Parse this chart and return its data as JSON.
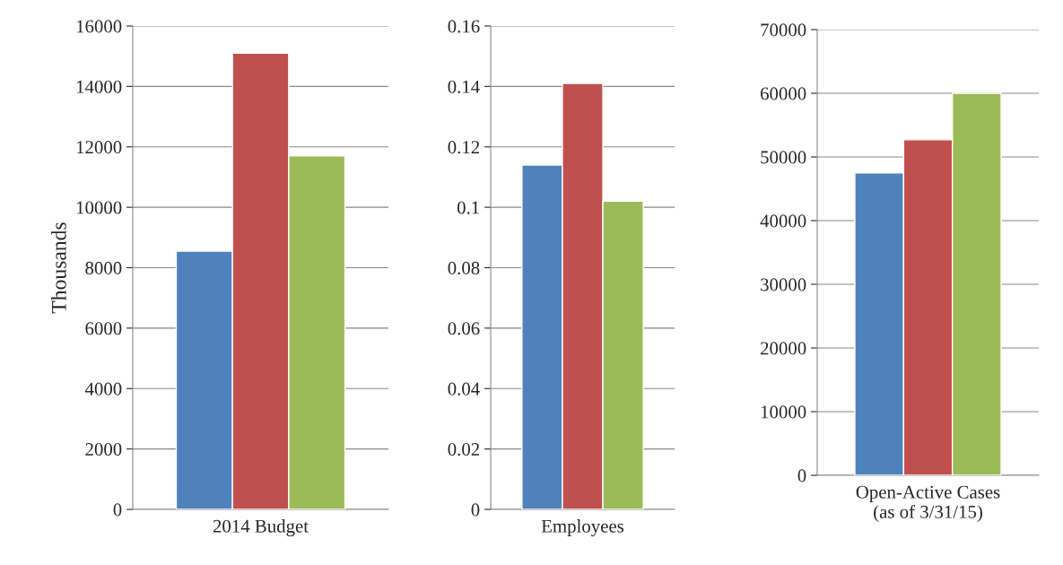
{
  "chart_data": [
    {
      "type": "bar",
      "categories": [
        "2014 Budget"
      ],
      "ylabel": "Thousands",
      "ylim": [
        0,
        16000
      ],
      "yticks": [
        0,
        2000,
        4000,
        6000,
        8000,
        10000,
        12000,
        14000,
        16000
      ],
      "grid": "y",
      "series": [
        {
          "color": "#4f81bd",
          "values": [
            8550
          ]
        },
        {
          "color": "#c0504d",
          "values": [
            15100
          ]
        },
        {
          "color": "#9bbb59",
          "values": [
            11700
          ]
        }
      ]
    },
    {
      "type": "bar",
      "categories": [
        "Employees"
      ],
      "ylim": [
        0,
        0.16
      ],
      "yticks": [
        0,
        0.02,
        0.04,
        0.06,
        0.08,
        0.1,
        0.12,
        0.14,
        0.16
      ],
      "grid": "y",
      "series": [
        {
          "color": "#4f81bd",
          "values": [
            0.114
          ]
        },
        {
          "color": "#c0504d",
          "values": [
            0.141
          ]
        },
        {
          "color": "#9bbb59",
          "values": [
            0.102
          ]
        }
      ]
    },
    {
      "type": "bar",
      "categories": [
        "Open-Active Cases\n(as of 3/31/15)"
      ],
      "ylim": [
        0,
        70000
      ],
      "yticks": [
        0,
        10000,
        20000,
        30000,
        40000,
        50000,
        60000,
        70000
      ],
      "grid": "y",
      "series": [
        {
          "color": "#4f81bd",
          "values": [
            47500
          ]
        },
        {
          "color": "#c0504d",
          "values": [
            52700
          ]
        },
        {
          "color": "#9bbb59",
          "values": [
            60000
          ]
        }
      ]
    }
  ]
}
